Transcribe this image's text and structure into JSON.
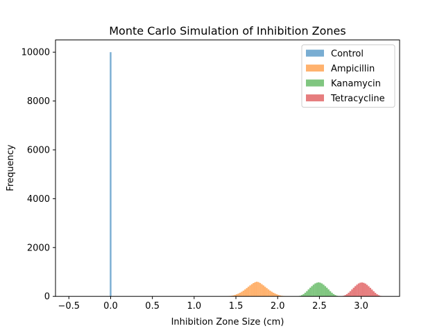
{
  "chart_data": {
    "type": "bar",
    "title": "Monte Carlo Simulation of Inhibition Zones",
    "xlabel": "Inhibition Zone Size (cm)",
    "ylabel": "Frequency",
    "xlim": [
      -0.66,
      3.46
    ],
    "ylim": [
      0,
      10500
    ],
    "xticks": [
      -0.5,
      0.0,
      0.5,
      1.0,
      1.5,
      2.0,
      2.5,
      3.0
    ],
    "xtick_labels": [
      "−0.5",
      "0.0",
      "0.5",
      "1.0",
      "1.5",
      "2.0",
      "2.5",
      "3.0"
    ],
    "yticks": [
      0,
      2000,
      4000,
      6000,
      8000,
      10000
    ],
    "ytick_labels": [
      "0",
      "2000",
      "4000",
      "6000",
      "8000",
      "10000"
    ],
    "grid": false,
    "legend_position": "top-right",
    "bin_width": 0.02,
    "series": [
      {
        "name": "Control",
        "color": "#1f77b4",
        "bins": [
          {
            "x": 0.0,
            "count": 10000
          }
        ]
      },
      {
        "name": "Ampicillin",
        "color": "#ff7f0e",
        "bins": [
          {
            "x": 1.39,
            "count": 4
          },
          {
            "x": 1.41,
            "count": 9
          },
          {
            "x": 1.43,
            "count": 15
          },
          {
            "x": 1.45,
            "count": 25
          },
          {
            "x": 1.47,
            "count": 40
          },
          {
            "x": 1.49,
            "count": 60
          },
          {
            "x": 1.51,
            "count": 85
          },
          {
            "x": 1.53,
            "count": 115
          },
          {
            "x": 1.55,
            "count": 150
          },
          {
            "x": 1.57,
            "count": 190
          },
          {
            "x": 1.59,
            "count": 235
          },
          {
            "x": 1.61,
            "count": 285
          },
          {
            "x": 1.63,
            "count": 340
          },
          {
            "x": 1.65,
            "count": 395
          },
          {
            "x": 1.67,
            "count": 450
          },
          {
            "x": 1.69,
            "count": 500
          },
          {
            "x": 1.71,
            "count": 545
          },
          {
            "x": 1.73,
            "count": 580
          },
          {
            "x": 1.75,
            "count": 600
          },
          {
            "x": 1.77,
            "count": 585
          },
          {
            "x": 1.79,
            "count": 550
          },
          {
            "x": 1.81,
            "count": 500
          },
          {
            "x": 1.83,
            "count": 450
          },
          {
            "x": 1.85,
            "count": 395
          },
          {
            "x": 1.87,
            "count": 340
          },
          {
            "x": 1.89,
            "count": 285
          },
          {
            "x": 1.91,
            "count": 235
          },
          {
            "x": 1.93,
            "count": 190
          },
          {
            "x": 1.95,
            "count": 150
          },
          {
            "x": 1.97,
            "count": 115
          },
          {
            "x": 1.99,
            "count": 85
          },
          {
            "x": 2.01,
            "count": 60
          },
          {
            "x": 2.03,
            "count": 40
          },
          {
            "x": 2.05,
            "count": 25
          },
          {
            "x": 2.07,
            "count": 14
          },
          {
            "x": 2.09,
            "count": 7
          }
        ]
      },
      {
        "name": "Kanamycin",
        "color": "#2ca02c",
        "bins": [
          {
            "x": 2.25,
            "count": 8
          },
          {
            "x": 2.27,
            "count": 25
          },
          {
            "x": 2.29,
            "count": 55
          },
          {
            "x": 2.31,
            "count": 95
          },
          {
            "x": 2.33,
            "count": 150
          },
          {
            "x": 2.35,
            "count": 215
          },
          {
            "x": 2.37,
            "count": 285
          },
          {
            "x": 2.39,
            "count": 355
          },
          {
            "x": 2.41,
            "count": 420
          },
          {
            "x": 2.43,
            "count": 480
          },
          {
            "x": 2.45,
            "count": 530
          },
          {
            "x": 2.47,
            "count": 560
          },
          {
            "x": 2.49,
            "count": 575
          },
          {
            "x": 2.51,
            "count": 560
          },
          {
            "x": 2.53,
            "count": 530
          },
          {
            "x": 2.55,
            "count": 480
          },
          {
            "x": 2.57,
            "count": 420
          },
          {
            "x": 2.59,
            "count": 355
          },
          {
            "x": 2.61,
            "count": 285
          },
          {
            "x": 2.63,
            "count": 215
          },
          {
            "x": 2.65,
            "count": 150
          },
          {
            "x": 2.67,
            "count": 95
          },
          {
            "x": 2.69,
            "count": 55
          },
          {
            "x": 2.71,
            "count": 25
          },
          {
            "x": 2.73,
            "count": 8
          }
        ]
      },
      {
        "name": "Tetracycline",
        "color": "#d62728",
        "bins": [
          {
            "x": 2.77,
            "count": 8
          },
          {
            "x": 2.79,
            "count": 25
          },
          {
            "x": 2.81,
            "count": 55
          },
          {
            "x": 2.83,
            "count": 95
          },
          {
            "x": 2.85,
            "count": 150
          },
          {
            "x": 2.87,
            "count": 215
          },
          {
            "x": 2.89,
            "count": 285
          },
          {
            "x": 2.91,
            "count": 355
          },
          {
            "x": 2.93,
            "count": 420
          },
          {
            "x": 2.95,
            "count": 480
          },
          {
            "x": 2.97,
            "count": 530
          },
          {
            "x": 2.99,
            "count": 560
          },
          {
            "x": 3.01,
            "count": 570
          },
          {
            "x": 3.03,
            "count": 555
          },
          {
            "x": 3.05,
            "count": 525
          },
          {
            "x": 3.07,
            "count": 475
          },
          {
            "x": 3.09,
            "count": 415
          },
          {
            "x": 3.11,
            "count": 350
          },
          {
            "x": 3.13,
            "count": 280
          },
          {
            "x": 3.15,
            "count": 210
          },
          {
            "x": 3.17,
            "count": 145
          },
          {
            "x": 3.19,
            "count": 90
          },
          {
            "x": 3.21,
            "count": 50
          },
          {
            "x": 3.23,
            "count": 22
          },
          {
            "x": 3.25,
            "count": 8
          }
        ]
      }
    ]
  }
}
